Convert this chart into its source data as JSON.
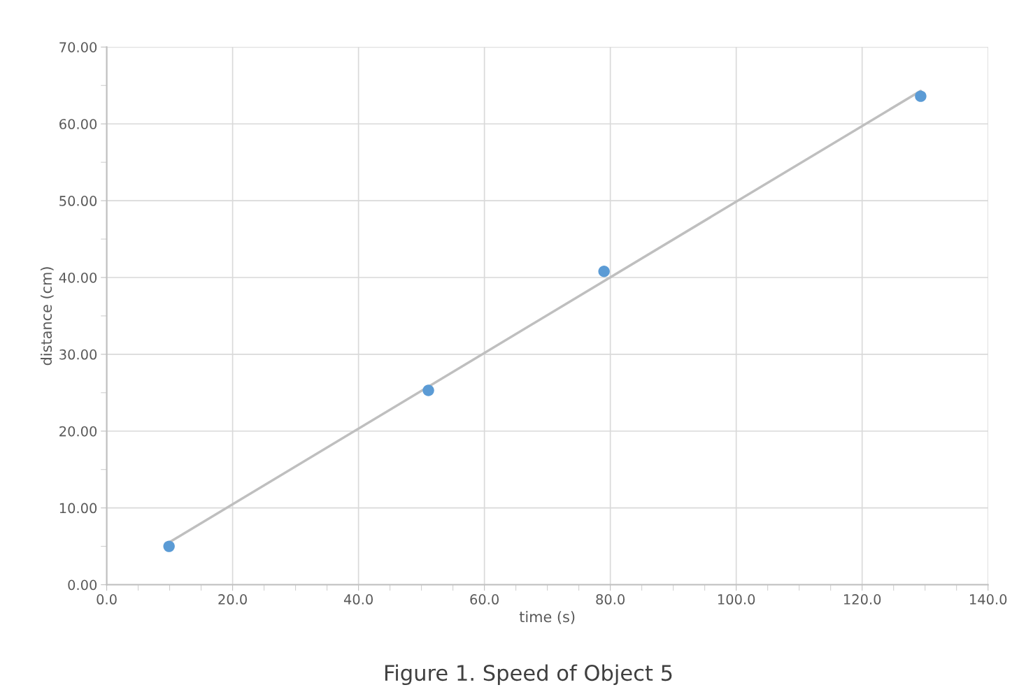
{
  "chart_data": {
    "type": "scatter",
    "title": "Figure 1. Speed of Object 5",
    "xlabel": "time (s)",
    "ylabel": "distance (cm)",
    "x": [
      9.9,
      51.1,
      79.0,
      129.3
    ],
    "series": [
      {
        "color": "#5b9bd5",
        "values": [
          5.0,
          25.3,
          40.8,
          63.6
        ],
        "marker": "circle"
      },
      {
        "type": "line",
        "color": "#bfbfbf",
        "x": [
          9.9,
          129.3
        ],
        "values": [
          5.5,
          64.3
        ],
        "line_style": "solid",
        "marker": "none"
      }
    ],
    "xlim": [
      0,
      140
    ],
    "ylim": [
      0,
      70
    ],
    "xticks": [
      {
        "value": 0,
        "label": "0.0"
      },
      {
        "value": 5,
        "label": null
      },
      {
        "value": 10,
        "label": null
      },
      {
        "value": 15,
        "label": null
      },
      {
        "value": 20,
        "label": "20.0"
      },
      {
        "value": 25,
        "label": null
      },
      {
        "value": 30,
        "label": null
      },
      {
        "value": 35,
        "label": null
      },
      {
        "value": 40,
        "label": "40.0"
      },
      {
        "value": 45,
        "label": null
      },
      {
        "value": 50,
        "label": null
      },
      {
        "value": 55,
        "label": null
      },
      {
        "value": 60,
        "label": "60.0"
      },
      {
        "value": 65,
        "label": null
      },
      {
        "value": 70,
        "label": null
      },
      {
        "value": 75,
        "label": null
      },
      {
        "value": 80,
        "label": "80.0"
      },
      {
        "value": 85,
        "label": null
      },
      {
        "value": 90,
        "label": null
      },
      {
        "value": 95,
        "label": null
      },
      {
        "value": 100,
        "label": "100.0"
      },
      {
        "value": 105,
        "label": null
      },
      {
        "value": 110,
        "label": null
      },
      {
        "value": 115,
        "label": null
      },
      {
        "value": 120,
        "label": "120.0"
      },
      {
        "value": 125,
        "label": null
      },
      {
        "value": 130,
        "label": null
      },
      {
        "value": 135,
        "label": null
      },
      {
        "value": 140,
        "label": "140.0"
      }
    ],
    "yticks": [
      {
        "value": 0,
        "label": "0.00"
      },
      {
        "value": 5,
        "label": null
      },
      {
        "value": 10,
        "label": "10.00"
      },
      {
        "value": 15,
        "label": null
      },
      {
        "value": 20,
        "label": "20.00"
      },
      {
        "value": 25,
        "label": null
      },
      {
        "value": 30,
        "label": "30.00"
      },
      {
        "value": 35,
        "label": null
      },
      {
        "value": 40,
        "label": "40.00"
      },
      {
        "value": 45,
        "label": null
      },
      {
        "value": 50,
        "label": "50.00"
      },
      {
        "value": 55,
        "label": null
      },
      {
        "value": 60,
        "label": "60.00"
      },
      {
        "value": 65,
        "label": null
      },
      {
        "value": 70,
        "label": "70.00"
      }
    ],
    "grid": true,
    "legend": false
  }
}
